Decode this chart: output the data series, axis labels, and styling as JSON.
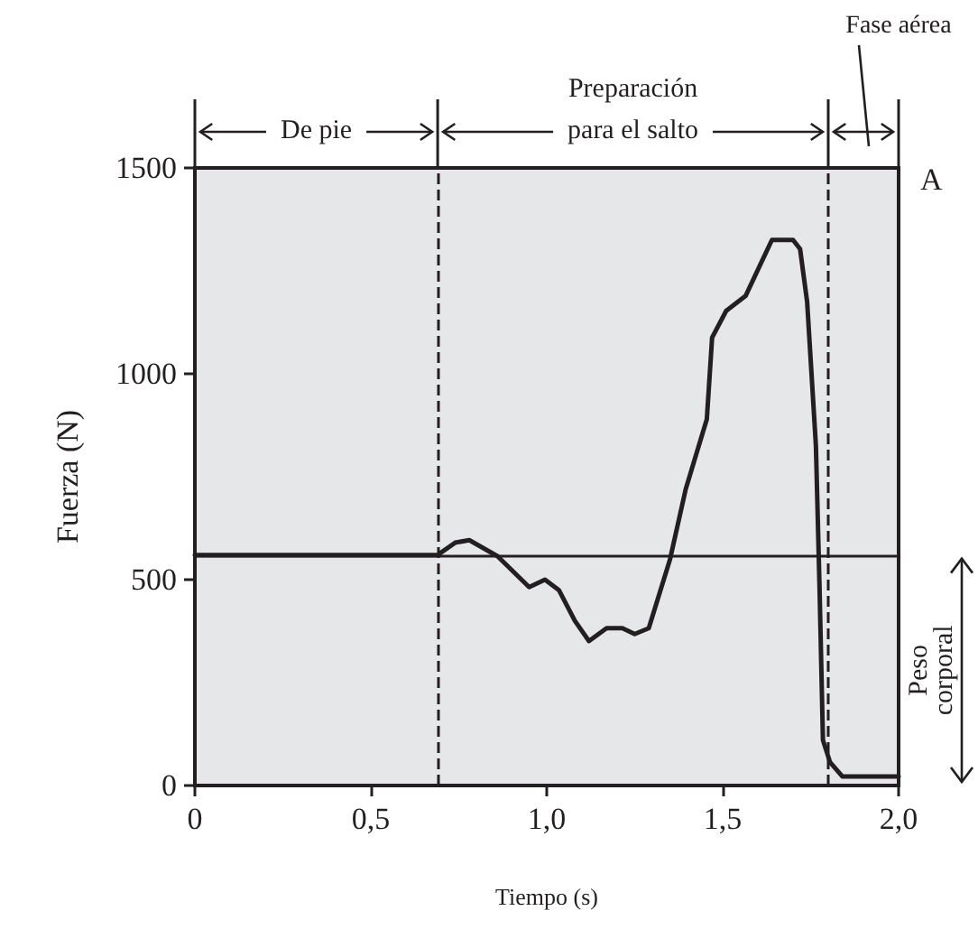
{
  "chart_data": {
    "type": "line",
    "xlabel": "Tiempo (s)",
    "ylabel": "Fuerza (N)",
    "x": [
      0,
      0.69,
      0.74,
      0.78,
      0.86,
      0.95,
      0.995,
      1.035,
      1.08,
      1.12,
      1.17,
      1.215,
      1.25,
      1.29,
      1.35,
      1.395,
      1.455,
      1.47,
      1.51,
      1.565,
      1.615,
      1.64,
      1.7,
      1.72,
      1.74,
      1.765,
      1.775,
      1.785,
      1.805,
      1.84,
      2.0
    ],
    "values": [
      560,
      560,
      590,
      596,
      557,
      482,
      500,
      474,
      400,
      351,
      382,
      382,
      368,
      382,
      548,
      720,
      890,
      1088,
      1153,
      1189,
      1280,
      1325,
      1325,
      1303,
      1175,
      825,
      491,
      110,
      57,
      22,
      22
    ],
    "color": "#231f20",
    "xlim": [
      0,
      2
    ],
    "xticks": [
      0,
      {
        "value": 0.5,
        "label": "0,5"
      },
      {
        "value": 1,
        "label": "1,0"
      },
      {
        "value": 1.5,
        "label": "1,5"
      },
      {
        "value": 2,
        "label": "2,0"
      }
    ],
    "ylim": [
      0,
      1500
    ],
    "yticks": [
      0,
      500,
      1000,
      1500
    ],
    "grid": false,
    "marker": "none",
    "line_style": "solid",
    "ref_lines": [
      {
        "axis": "y",
        "value": 560,
        "line_style": "solid",
        "color": "#231f20"
      },
      {
        "axis": "x",
        "value": 0.69,
        "line_style": "dashed",
        "color": "#231f20"
      },
      {
        "axis": "x",
        "value": 1.8,
        "line_style": "dashed",
        "color": "#231f20"
      }
    ],
    "annotations": [
      "De pie",
      "Preparación para el salto",
      "Fase aérea",
      "A",
      "Peso corporal"
    ]
  }
}
